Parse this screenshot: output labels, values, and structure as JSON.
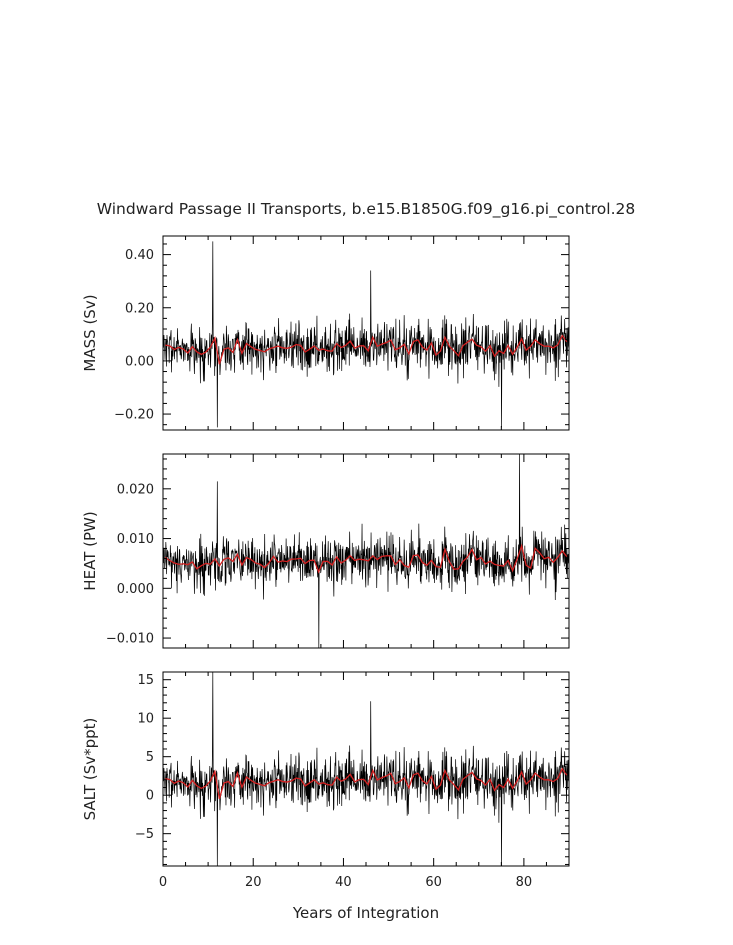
{
  "title": "Windward Passage II Transports, b.e15.B1850G.f09_g16.pi_control.28",
  "xlabel": "Years of Integration",
  "colors": {
    "raw": "#000000",
    "smoothed": "#d42020",
    "frame": "#000000"
  },
  "chart_data": [
    {
      "type": "line",
      "name": "mass",
      "ylabel": "MASS (Sv)",
      "xlim": [
        0,
        90
      ],
      "ylim": [
        -0.26,
        0.47
      ],
      "yticks": [
        -0.2,
        0.0,
        0.2,
        0.4
      ],
      "ytick_labels": [
        "−0.20",
        "0.00",
        "0.20",
        "0.40"
      ],
      "xticks": [
        0,
        20,
        40,
        60,
        80
      ],
      "xtick_labels": [],
      "approx_mean": 0.05,
      "series": [
        {
          "name": "",
          "style": "raw-monthly",
          "approx_std": 0.055
        },
        {
          "name": "",
          "style": "smoothed-annual"
        }
      ],
      "notable_points": [
        {
          "x": 11.0,
          "y": 0.45
        },
        {
          "x": 12.0,
          "y": -0.25
        },
        {
          "x": 46.0,
          "y": 0.34
        },
        {
          "x": 75.0,
          "y": -0.25
        }
      ]
    },
    {
      "type": "line",
      "name": "heat",
      "ylabel": "HEAT (PW)",
      "xlim": [
        0,
        90
      ],
      "ylim": [
        -0.012,
        0.027
      ],
      "yticks": [
        -0.01,
        0.0,
        0.01,
        0.02
      ],
      "ytick_labels": [
        "−0.010",
        "0.000",
        "0.010",
        "0.020"
      ],
      "xticks": [
        0,
        20,
        40,
        60,
        80
      ],
      "xtick_labels": [],
      "approx_mean": 0.0055,
      "series": [
        {
          "name": "",
          "style": "raw-monthly",
          "approx_std": 0.0035
        },
        {
          "name": "",
          "style": "smoothed-annual"
        }
      ],
      "notable_points": [
        {
          "x": 12.0,
          "y": 0.0215
        },
        {
          "x": 34.5,
          "y": -0.012
        },
        {
          "x": 79.0,
          "y": 0.027
        }
      ]
    },
    {
      "type": "line",
      "name": "salt",
      "ylabel": "SALT (Sv*ppt)",
      "xlim": [
        0,
        90
      ],
      "ylim": [
        -9.2,
        16.0
      ],
      "yticks": [
        -5,
        0,
        5,
        10,
        15
      ],
      "ytick_labels": [
        "−5",
        "0",
        "5",
        "10",
        "15"
      ],
      "xticks": [
        0,
        20,
        40,
        60,
        80
      ],
      "xtick_labels": [
        "0",
        "20",
        "40",
        "60",
        "80"
      ],
      "approx_mean": 1.8,
      "series": [
        {
          "name": "",
          "style": "raw-monthly",
          "approx_std": 2.0
        },
        {
          "name": "",
          "style": "smoothed-annual"
        }
      ],
      "notable_points": [
        {
          "x": 11.0,
          "y": 16.0
        },
        {
          "x": 12.0,
          "y": -9.2
        },
        {
          "x": 46.0,
          "y": 12.2
        },
        {
          "x": 75.0,
          "y": -9.2
        }
      ]
    }
  ]
}
